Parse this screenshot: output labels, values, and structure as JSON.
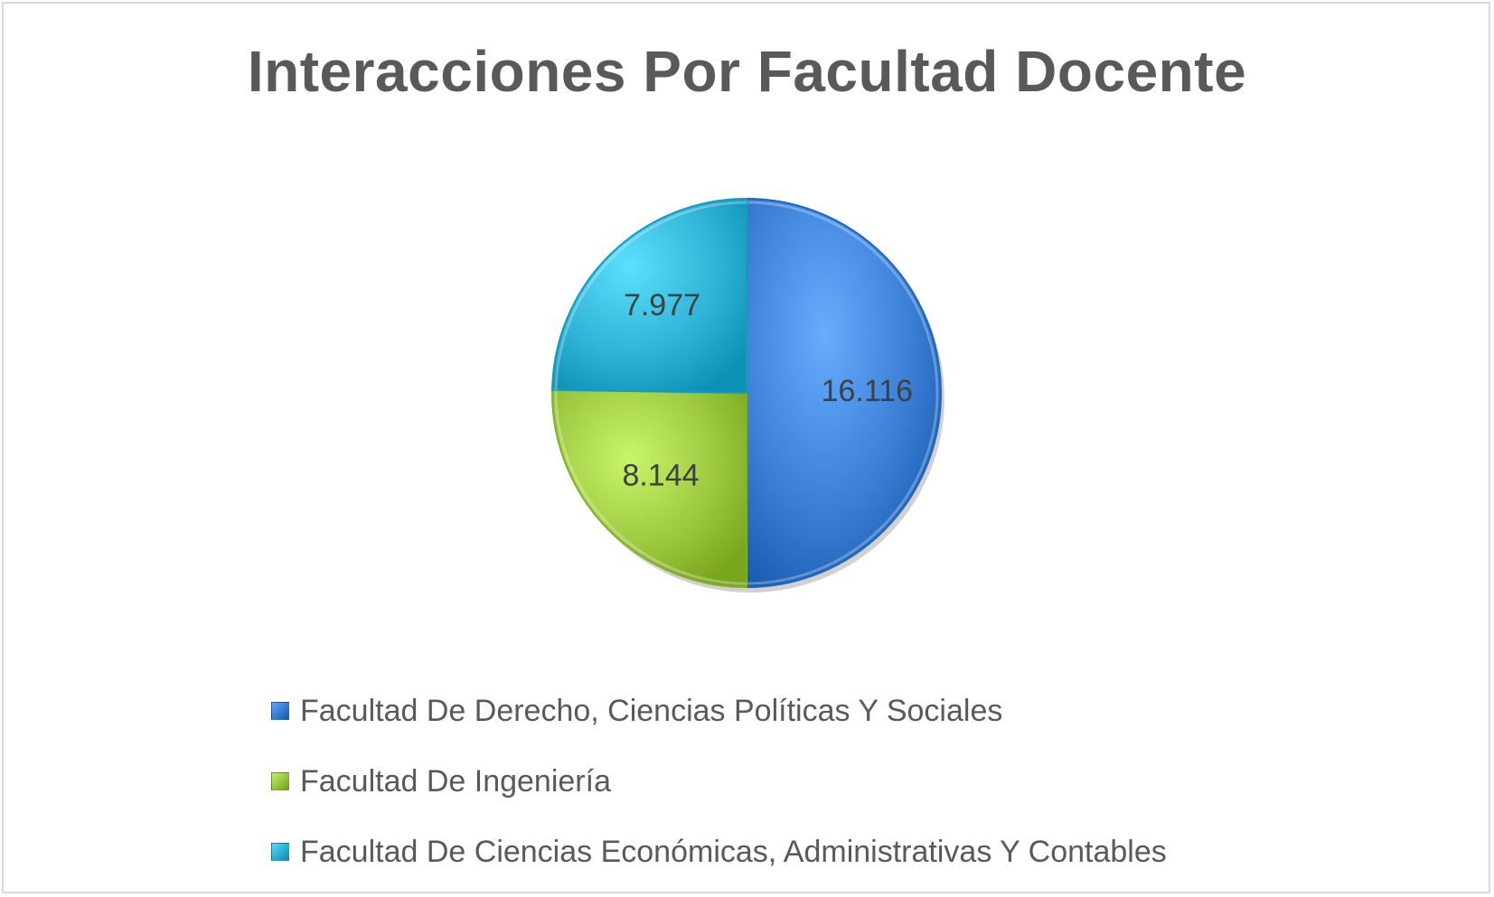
{
  "chart_data": {
    "type": "pie",
    "title": "Interacciones Por Facultad Docente",
    "series": [
      {
        "categories": [
          "Facultad De Derecho, Ciencias Políticas Y Sociales",
          "Facultad De Ingeniería",
          "Facultad De Ciencias Económicas, Administrativas Y Contables"
        ],
        "values": [
          16116,
          8144,
          7977
        ],
        "data_labels": [
          "16.116",
          "8.144",
          "7.977"
        ]
      }
    ],
    "colors": [
      "#3a7fd4",
      "#9cc840",
      "#2fb3d6"
    ],
    "legend_position": "bottom",
    "start_angle": "12 o'clock, clockwise"
  }
}
